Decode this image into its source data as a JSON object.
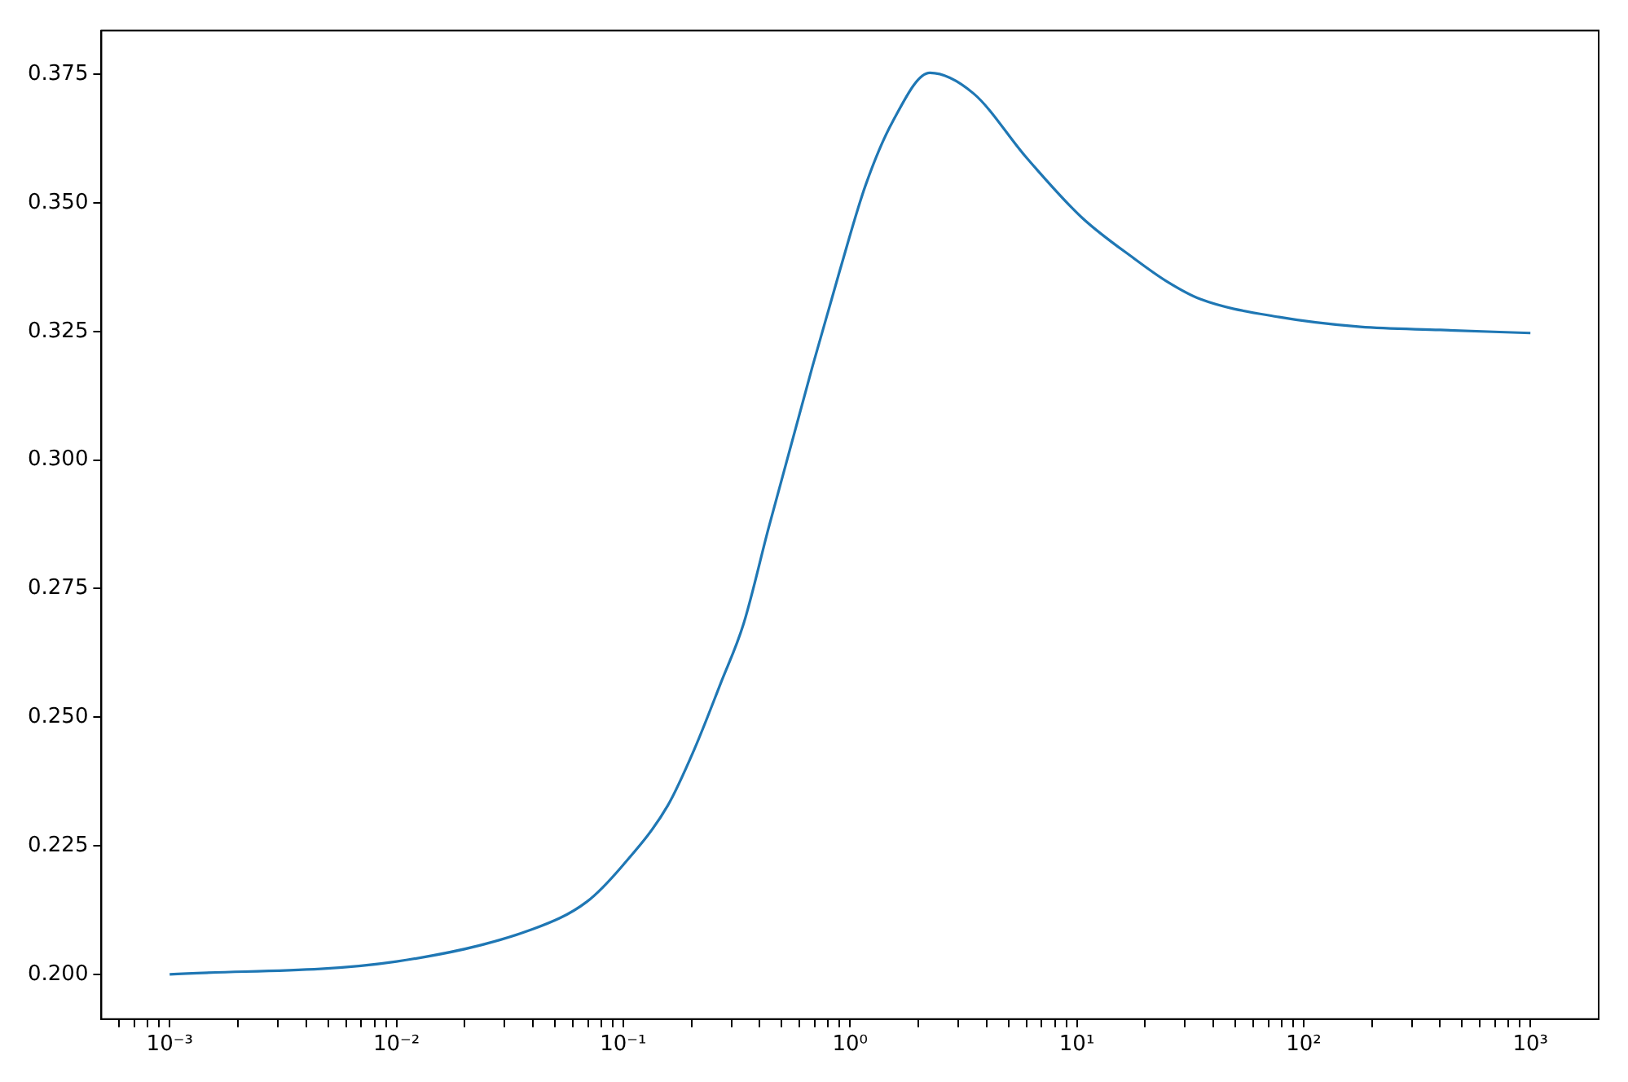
{
  "chart_data": {
    "type": "line",
    "log": "x",
    "grid": false,
    "legend": false,
    "marker": "none",
    "line_style": "solid",
    "xlim": [
      0.0005,
      2000
    ],
    "ylim": [
      0.1913,
      0.3835
    ],
    "xticks": [
      {
        "value": 0.0006,
        "label": null
      },
      {
        "value": 0.0007,
        "label": null
      },
      {
        "value": 0.0008,
        "label": null
      },
      {
        "value": 0.0009,
        "label": null
      },
      {
        "value": 0.001,
        "label": "10⁻³"
      },
      {
        "value": 0.002,
        "label": null
      },
      {
        "value": 0.003,
        "label": null
      },
      {
        "value": 0.004,
        "label": null
      },
      {
        "value": 0.005,
        "label": null
      },
      {
        "value": 0.006,
        "label": null
      },
      {
        "value": 0.007,
        "label": null
      },
      {
        "value": 0.008,
        "label": null
      },
      {
        "value": 0.009,
        "label": null
      },
      {
        "value": 0.01,
        "label": "10⁻²"
      },
      {
        "value": 0.02,
        "label": null
      },
      {
        "value": 0.03,
        "label": null
      },
      {
        "value": 0.04,
        "label": null
      },
      {
        "value": 0.05,
        "label": null
      },
      {
        "value": 0.06,
        "label": null
      },
      {
        "value": 0.07,
        "label": null
      },
      {
        "value": 0.08,
        "label": null
      },
      {
        "value": 0.09,
        "label": null
      },
      {
        "value": 0.1,
        "label": "10⁻¹"
      },
      {
        "value": 0.2,
        "label": null
      },
      {
        "value": 0.3,
        "label": null
      },
      {
        "value": 0.4,
        "label": null
      },
      {
        "value": 0.5,
        "label": null
      },
      {
        "value": 0.6,
        "label": null
      },
      {
        "value": 0.7,
        "label": null
      },
      {
        "value": 0.8,
        "label": null
      },
      {
        "value": 0.9,
        "label": null
      },
      {
        "value": 1,
        "label": "10⁰"
      },
      {
        "value": 2,
        "label": null
      },
      {
        "value": 3,
        "label": null
      },
      {
        "value": 4,
        "label": null
      },
      {
        "value": 5,
        "label": null
      },
      {
        "value": 6,
        "label": null
      },
      {
        "value": 7,
        "label": null
      },
      {
        "value": 8,
        "label": null
      },
      {
        "value": 9,
        "label": null
      },
      {
        "value": 10,
        "label": "10¹"
      },
      {
        "value": 20,
        "label": null
      },
      {
        "value": 30,
        "label": null
      },
      {
        "value": 40,
        "label": null
      },
      {
        "value": 50,
        "label": null
      },
      {
        "value": 60,
        "label": null
      },
      {
        "value": 70,
        "label": null
      },
      {
        "value": 80,
        "label": null
      },
      {
        "value": 90,
        "label": null
      },
      {
        "value": 100,
        "label": "10²"
      },
      {
        "value": 200,
        "label": null
      },
      {
        "value": 300,
        "label": null
      },
      {
        "value": 400,
        "label": null
      },
      {
        "value": 500,
        "label": null
      },
      {
        "value": 600,
        "label": null
      },
      {
        "value": 700,
        "label": null
      },
      {
        "value": 800,
        "label": null
      },
      {
        "value": 900,
        "label": null
      },
      {
        "value": 1000,
        "label": "10³"
      }
    ],
    "yticks": [
      {
        "value": 0.2,
        "label": "0.200"
      },
      {
        "value": 0.225,
        "label": "0.225"
      },
      {
        "value": 0.25,
        "label": "0.250"
      },
      {
        "value": 0.275,
        "label": "0.275"
      },
      {
        "value": 0.3,
        "label": "0.300"
      },
      {
        "value": 0.325,
        "label": "0.325"
      },
      {
        "value": 0.35,
        "label": "0.350"
      },
      {
        "value": 0.375,
        "label": "0.375"
      }
    ],
    "series": [
      {
        "color": "#1f77b4",
        "x": [
          0.001,
          0.01,
          0.04,
          0.069,
          0.1,
          0.157,
          0.206,
          0.269,
          0.339,
          0.438,
          0.682,
          0.902,
          1.17,
          1.545,
          2.25,
          3.5,
          6.0,
          10.5,
          18,
          25,
          35,
          78,
          178,
          400,
          1000
        ],
        "values": [
          0.2,
          0.2025,
          0.2088,
          0.2141,
          0.2213,
          0.2328,
          0.2438,
          0.2566,
          0.2681,
          0.2869,
          0.3181,
          0.3369,
          0.3534,
          0.3659,
          0.3753,
          0.3713,
          0.3588,
          0.3472,
          0.3391,
          0.3347,
          0.3313,
          0.3278,
          0.3259,
          0.3253,
          0.3247
        ]
      }
    ]
  }
}
